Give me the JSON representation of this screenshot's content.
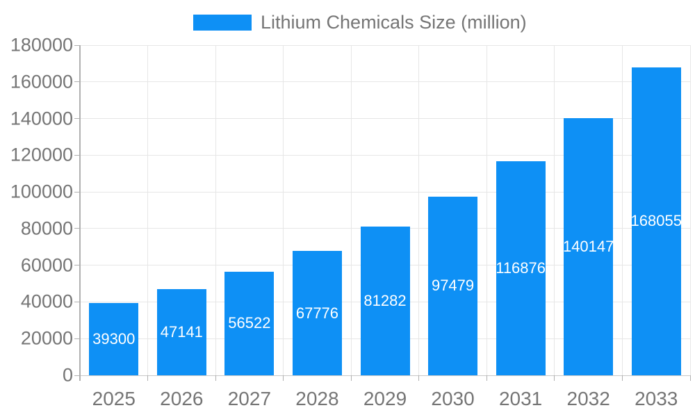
{
  "chart_data": {
    "type": "bar",
    "title": "Lithium Chemicals Size (million)",
    "legend_position": "top",
    "categories": [
      "2025",
      "2026",
      "2027",
      "2028",
      "2029",
      "2030",
      "2031",
      "2032",
      "2033"
    ],
    "series": [
      {
        "name": "Lithium Chemicals Size (million)",
        "values": [
          39300,
          47141,
          56522,
          67776,
          81282,
          97479,
          116876,
          140147,
          168055
        ]
      }
    ],
    "data_labels_visible": true,
    "xlabel": "",
    "ylabel": "",
    "ylim": [
      0,
      180000
    ],
    "ytick_step": 20000,
    "ytick_labels": [
      "0",
      "20000",
      "40000",
      "60000",
      "80000",
      "100000",
      "120000",
      "140000",
      "160000",
      "180000"
    ],
    "grid": "on",
    "colors": {
      "bar": "#0e90f5",
      "grid": "#e6e6e6",
      "baseline": "#c8c8c8",
      "axis": "#b0b0b0",
      "text": "#757575",
      "value_label": "#ffffff",
      "background": "#ffffff"
    }
  }
}
